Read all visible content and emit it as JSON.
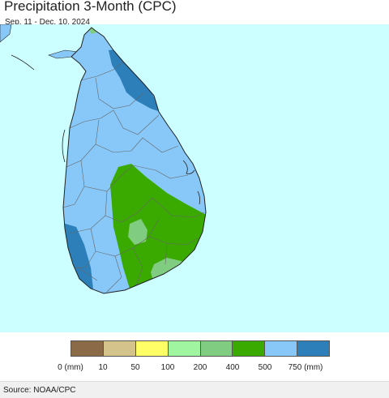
{
  "title": "Precipitation 3-Month (CPC)",
  "date_range": "Sep. 11 - Dec. 10, 2024",
  "source": "Source: NOAA/CPC",
  "map": {
    "water_color": "#ccffff",
    "region": "Sri Lanka",
    "dominant_class_color": "#88c8f8",
    "zones": [
      {
        "feature": "land-base",
        "class_color": "#88c8f8"
      },
      {
        "feature": "northeast-coast-zone",
        "class_color": "#2c7fb8"
      },
      {
        "feature": "southwest-coast-zone",
        "class_color": "#2c7fb8"
      },
      {
        "feature": "southeast-interior-zone",
        "class_color": "#3aaa00"
      },
      {
        "feature": "central-pocket-zone",
        "class_color": "#80cc80"
      },
      {
        "feature": "south-coast-zone",
        "class_color": "#80cc80"
      },
      {
        "feature": "northern-tip-zone",
        "class_color": "#80cc80"
      }
    ]
  },
  "legend": {
    "colors": [
      "#8b6b47",
      "#d4c48c",
      "#ffff66",
      "#a0f5a0",
      "#80cc80",
      "#3aaa00",
      "#88c8f8",
      "#2c7fb8"
    ],
    "labels": [
      "0 (mm)",
      "10",
      "50",
      "100",
      "200",
      "400",
      "500",
      "750 (mm)"
    ]
  }
}
